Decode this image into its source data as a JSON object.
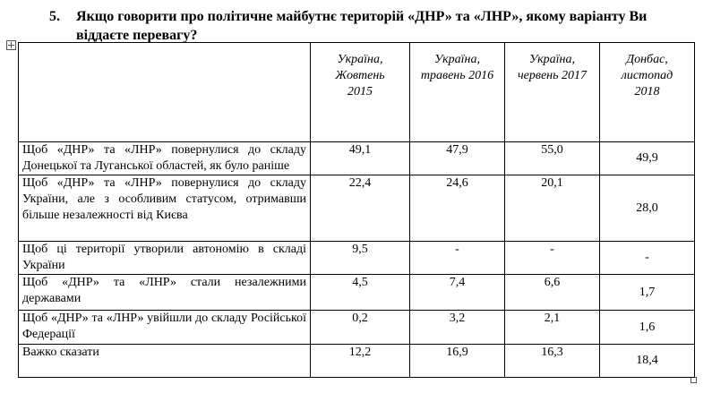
{
  "question": {
    "number": "5.",
    "text": "Якщо говорити про політичне майбутнє територій «ДНР» та «ЛНР», якому варіанту Ви віддаєте перевагу?"
  },
  "table": {
    "headers": [
      [
        "Україна,",
        "Жовтень",
        "2015"
      ],
      [
        "Україна,",
        "травень 2016"
      ],
      [
        "Україна,",
        "червень 2017"
      ],
      [
        "Донбас,",
        "листопад",
        "2018"
      ]
    ],
    "rows": [
      [
        "Щоб «ДНР» та «ЛНР» повернулися до складу Донецької та Луганської областей, як було раніше",
        "49,1",
        "47,9",
        "55,0",
        "49,9"
      ],
      [
        "Щоб «ДНР» та «ЛНР» повернулися до складу України, але з особливим статусом, отримавши більше незалежності від Києва",
        "22,4",
        "24,6",
        "20,1",
        "28,0"
      ],
      [
        "Щоб ці території утворили автономію в складі України",
        "9,5",
        "-",
        "-",
        "-"
      ],
      [
        "Щоб «ДНР» та «ЛНР» стали незалежними державами",
        "4,5",
        "7,4",
        "6,6",
        "1,7"
      ],
      [
        "Щоб «ДНР» та «ЛНР» увійшли до складу Російської Федерації",
        "0,2",
        "3,2",
        "2,1",
        "1,6"
      ],
      [
        "Важко сказати",
        "12,2",
        "16,9",
        "16,3",
        "18,4"
      ]
    ]
  }
}
